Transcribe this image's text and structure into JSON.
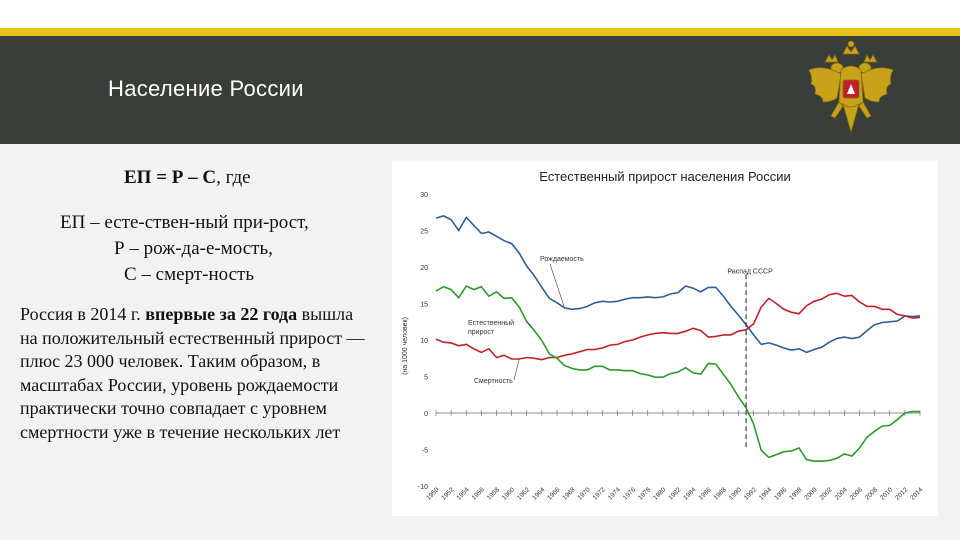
{
  "header": {
    "title": "Население России"
  },
  "content": {
    "formula_bold": "ЕП = Р – С",
    "formula_rest": ", где",
    "definitions": [
      "ЕП – есте-ствен-ный при-рост,",
      "Р – рож-да-е-мость,",
      "С – смерт-ность"
    ],
    "paragraph_start": "Россия в 2014 г. ",
    "paragraph_bold": "впервые за 22 года",
    "paragraph_end": " вышла на положительный естественный прирост — плюс 23 000 человек. Таким образом, в масштабах России, уровень рождаемости практически точно совпадает с уровнем смертности уже в течение нескольких лет"
  },
  "colors": {
    "accent": "#e8c21a",
    "header_bg": "#3a3e3b",
    "births": "#2e5d9e",
    "deaths": "#c0202a",
    "natural_growth": "#2a9a2a",
    "emblem_gold": "#c8a21a",
    "emblem_shield": "#c0202a"
  },
  "icons": {
    "emblem": "russian-coat-of-arms-icon"
  },
  "chart_data": {
    "type": "line",
    "title": "Естественный прирост населения России",
    "ylabel": "(на 1000 человек)",
    "xlabel": "",
    "ylim": [
      -10,
      30
    ],
    "yticks": [
      30,
      25,
      20,
      15,
      10,
      5,
      0,
      -5,
      -10
    ],
    "xlim": [
      1950,
      2014
    ],
    "xticks": [
      1950,
      1952,
      1954,
      1956,
      1958,
      1960,
      1962,
      1964,
      1966,
      1968,
      1970,
      1972,
      1974,
      1976,
      1978,
      1980,
      1982,
      1984,
      1986,
      1988,
      1990,
      1992,
      1994,
      1996,
      1998,
      2000,
      2002,
      2004,
      2006,
      2008,
      2010,
      2012,
      2014
    ],
    "grid": false,
    "annotations": [
      {
        "text": "Рождаемость",
        "series": "births"
      },
      {
        "text": "Естественный прирост",
        "series": "natural_growth"
      },
      {
        "text": "Смертность",
        "series": "deaths"
      },
      {
        "text": "Распад СССР",
        "x": 1991
      }
    ],
    "x": [
      1950,
      1951,
      1952,
      1953,
      1954,
      1955,
      1956,
      1957,
      1958,
      1959,
      1960,
      1961,
      1962,
      1963,
      1964,
      1965,
      1966,
      1967,
      1968,
      1969,
      1970,
      1971,
      1972,
      1973,
      1974,
      1975,
      1976,
      1977,
      1978,
      1979,
      1980,
      1981,
      1982,
      1983,
      1984,
      1985,
      1986,
      1987,
      1988,
      1989,
      1990,
      1991,
      1992,
      1993,
      1994,
      1995,
      1996,
      1997,
      1998,
      1999,
      2000,
      2001,
      2002,
      2003,
      2004,
      2005,
      2006,
      2007,
      2008,
      2009,
      2010,
      2011,
      2012,
      2013,
      2014
    ],
    "series": [
      {
        "key": "births",
        "color": "#2e5d9e",
        "values": [
          26.7,
          27.0,
          26.5,
          25.0,
          26.8,
          25.7,
          24.6,
          24.8,
          24.2,
          23.6,
          23.2,
          21.9,
          20.1,
          18.8,
          17.2,
          15.7,
          15.1,
          14.4,
          14.2,
          14.3,
          14.6,
          15.1,
          15.3,
          15.2,
          15.3,
          15.6,
          15.8,
          15.8,
          15.9,
          15.8,
          15.9,
          16.3,
          16.5,
          17.4,
          17.1,
          16.6,
          17.2,
          17.2,
          16.0,
          14.6,
          13.4,
          12.1,
          10.7,
          9.4,
          9.6,
          9.3,
          8.9,
          8.6,
          8.8,
          8.3,
          8.7,
          9.0,
          9.7,
          10.2,
          10.4,
          10.2,
          10.4,
          11.3,
          12.1,
          12.4,
          12.5,
          12.6,
          13.3,
          13.2,
          13.3
        ]
      },
      {
        "key": "deaths",
        "color": "#c0202a",
        "values": [
          10.1,
          9.7,
          9.6,
          9.2,
          9.4,
          8.8,
          8.3,
          8.8,
          7.6,
          7.9,
          7.4,
          7.4,
          7.6,
          7.5,
          7.3,
          7.6,
          7.6,
          7.9,
          8.1,
          8.4,
          8.7,
          8.7,
          8.9,
          9.3,
          9.4,
          9.8,
          10.0,
          10.4,
          10.7,
          10.9,
          11.0,
          10.9,
          10.9,
          11.2,
          11.6,
          11.3,
          10.4,
          10.5,
          10.7,
          10.7,
          11.2,
          11.4,
          12.2,
          14.5,
          15.7,
          15.0,
          14.2,
          13.8,
          13.6,
          14.7,
          15.3,
          15.6,
          16.2,
          16.4,
          16.0,
          16.1,
          15.2,
          14.6,
          14.6,
          14.2,
          14.2,
          13.5,
          13.3,
          13.0,
          13.1
        ]
      },
      {
        "key": "natural_growth",
        "color": "#2a9a2a",
        "values": [
          16.7,
          17.3,
          16.9,
          15.8,
          17.4,
          16.9,
          17.3,
          16.0,
          16.6,
          15.7,
          15.8,
          14.5,
          12.5,
          11.3,
          9.9,
          8.1,
          7.5,
          6.5,
          6.1,
          5.9,
          5.9,
          6.4,
          6.4,
          5.9,
          5.9,
          5.8,
          5.8,
          5.4,
          5.2,
          4.9,
          4.9,
          5.4,
          5.6,
          6.2,
          5.5,
          5.3,
          6.8,
          6.7,
          5.3,
          3.9,
          2.2,
          0.7,
          -1.5,
          -5.1,
          -6.1,
          -5.7,
          -5.3,
          -5.2,
          -4.8,
          -6.4,
          -6.6,
          -6.6,
          -6.5,
          -6.2,
          -5.6,
          -5.9,
          -4.8,
          -3.3,
          -2.5,
          -1.8,
          -1.7,
          -0.9,
          0.0,
          0.2,
          0.2
        ]
      }
    ]
  }
}
